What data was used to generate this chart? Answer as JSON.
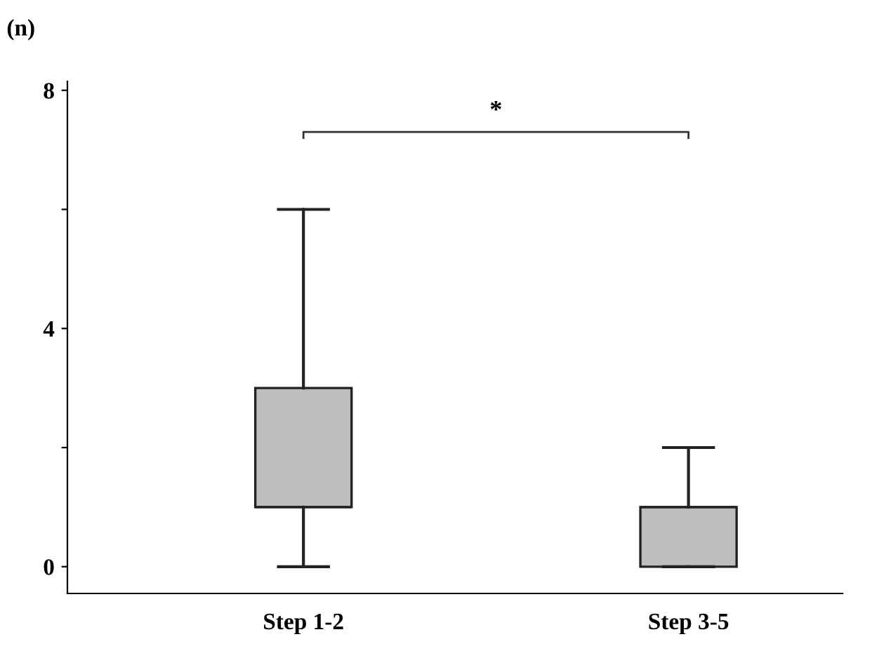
{
  "chart_data": {
    "type": "box",
    "ylabel": "(n)",
    "categories": [
      "Step 1-2",
      "Step 3-5"
    ],
    "boxes": [
      {
        "low": 0,
        "q1": 1,
        "median": 1,
        "q3": 3,
        "high": 6
      },
      {
        "low": 0,
        "q1": 0,
        "median": 1,
        "q3": 1,
        "high": 2
      }
    ],
    "color": "#bdbdbd",
    "ylim": [
      -0.45,
      8.15
    ],
    "yticks": [
      0,
      {
        "value": 2,
        "label": null
      },
      4,
      {
        "value": 6,
        "label": null
      },
      8
    ],
    "grid": false,
    "legend": false,
    "annotations": [
      "*"
    ]
  }
}
